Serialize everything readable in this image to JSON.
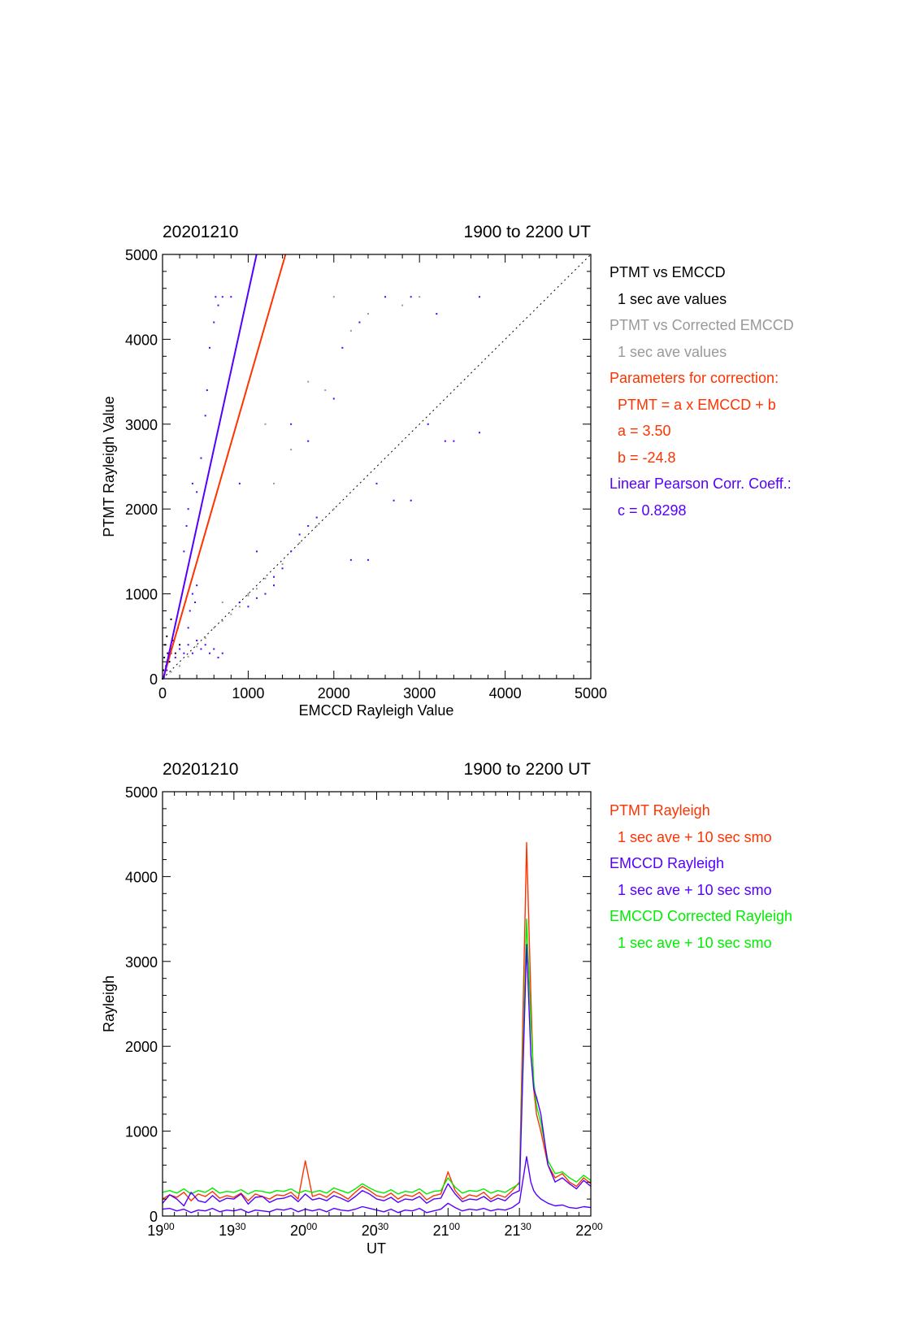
{
  "chart_data": [
    {
      "type": "scatter",
      "title_left": "20201210",
      "title_right": "1900 to 2200 UT",
      "xlabel": "EMCCD Rayleigh Value",
      "ylabel": "PTMT Rayleigh Value",
      "xlim": [
        0,
        5000
      ],
      "ylim": [
        0,
        5000
      ],
      "xticks": [
        "0",
        "1000",
        "2000",
        "3000",
        "4000",
        "5000"
      ],
      "yticks": [
        "0",
        "1000",
        "2000",
        "3000",
        "4000",
        "5000"
      ],
      "series": [
        {
          "color": "#5500ff",
          "points": [
            [
              50,
              100
            ],
            [
              80,
              200
            ],
            [
              100,
              300
            ],
            [
              150,
              250
            ],
            [
              200,
              350
            ],
            [
              250,
              300
            ],
            [
              300,
              400
            ],
            [
              350,
              300
            ],
            [
              400,
              450
            ],
            [
              450,
              350
            ],
            [
              500,
              400
            ],
            [
              550,
              300
            ],
            [
              600,
              350
            ],
            [
              650,
              250
            ],
            [
              700,
              300
            ],
            [
              300,
              600
            ],
            [
              320,
              800
            ],
            [
              350,
              1000
            ],
            [
              380,
              900
            ],
            [
              400,
              1100
            ],
            [
              250,
              1500
            ],
            [
              280,
              1800
            ],
            [
              300,
              2000
            ],
            [
              350,
              2300
            ],
            [
              400,
              2200
            ],
            [
              450,
              2600
            ],
            [
              500,
              3100
            ],
            [
              520,
              3400
            ],
            [
              550,
              3900
            ],
            [
              600,
              4200
            ],
            [
              620,
              4500
            ],
            [
              650,
              4400
            ],
            [
              700,
              4500
            ],
            [
              800,
              4500
            ],
            [
              900,
              900
            ],
            [
              1000,
              850
            ],
            [
              1100,
              950
            ],
            [
              1200,
              1000
            ],
            [
              1300,
              1100
            ],
            [
              1400,
              1300
            ],
            [
              1500,
              1500
            ],
            [
              1600,
              1700
            ],
            [
              1700,
              1800
            ],
            [
              1800,
              1900
            ],
            [
              1100,
              1500
            ],
            [
              1300,
              1200
            ],
            [
              1700,
              2800
            ],
            [
              2000,
              3300
            ],
            [
              2100,
              3900
            ],
            [
              2300,
              4200
            ],
            [
              2600,
              4500
            ],
            [
              2900,
              4500
            ],
            [
              3200,
              4300
            ],
            [
              2500,
              2300
            ],
            [
              2700,
              2100
            ],
            [
              2900,
              2100
            ],
            [
              3300,
              2800
            ],
            [
              3400,
              2800
            ],
            [
              2200,
              1400
            ],
            [
              2400,
              1400
            ],
            [
              3700,
              2900
            ],
            [
              3700,
              4500
            ],
            [
              3100,
              3000
            ],
            [
              900,
              2300
            ],
            [
              1500,
              3000
            ]
          ]
        },
        {
          "color": "#999999",
          "points": [
            [
              20,
              20
            ],
            [
              100,
              80
            ],
            [
              200,
              150
            ],
            [
              300,
              260
            ],
            [
              400,
              380
            ],
            [
              500,
              480
            ],
            [
              600,
              600
            ],
            [
              700,
              680
            ],
            [
              800,
              760
            ],
            [
              900,
              850
            ],
            [
              1000,
              980
            ],
            [
              1100,
              1060
            ],
            [
              1200,
              1180
            ],
            [
              1400,
              1350
            ],
            [
              1600,
              1600
            ],
            [
              1800,
              1800
            ],
            [
              2000,
              2000
            ],
            [
              1900,
              3400
            ],
            [
              2000,
              4500
            ],
            [
              2200,
              4100
            ],
            [
              2400,
              4300
            ],
            [
              2800,
              4400
            ],
            [
              3000,
              4500
            ],
            [
              1500,
              2700
            ],
            [
              1700,
              3500
            ],
            [
              1300,
              2300
            ],
            [
              1000,
              1000
            ],
            [
              700,
              900
            ],
            [
              1200,
              3000
            ]
          ]
        },
        {
          "color": "#000000",
          "points": [
            [
              0,
              0
            ],
            [
              10,
              100
            ],
            [
              20,
              250
            ],
            [
              30,
              400
            ],
            [
              40,
              150
            ],
            [
              50,
              500
            ],
            [
              60,
              300
            ],
            [
              80,
              200
            ],
            [
              100,
              350
            ],
            [
              120,
              450
            ],
            [
              150,
              300
            ],
            [
              200,
              400
            ],
            [
              180,
              600
            ],
            [
              100,
              700
            ]
          ]
        }
      ],
      "fit_lines": [
        {
          "color": "#ff3300",
          "a": 3.5,
          "b": -24.8
        },
        {
          "color": "#5500ff",
          "a": 4.6,
          "b": -50
        }
      ],
      "reference_line": {
        "color": "#000000",
        "style": "dotted",
        "from": [
          0,
          0
        ],
        "to": [
          5000,
          5000
        ]
      }
    },
    {
      "type": "line",
      "title_left": "20201210",
      "title_right": "1900 to 2200 UT",
      "xlabel": "UT",
      "ylabel": "Rayleigh",
      "xlim_hours": [
        19.0,
        22.0
      ],
      "ylim": [
        0,
        5000
      ],
      "xticks": [
        {
          "hour": "19",
          "min": "00"
        },
        {
          "hour": "19",
          "min": "30"
        },
        {
          "hour": "20",
          "min": "00"
        },
        {
          "hour": "20",
          "min": "30"
        },
        {
          "hour": "21",
          "min": "00"
        },
        {
          "hour": "21",
          "min": "30"
        },
        {
          "hour": "22",
          "min": "00"
        }
      ],
      "yticks": [
        "0",
        "1000",
        "2000",
        "3000",
        "4000",
        "5000"
      ],
      "x_hours": [
        19.0,
        19.05,
        19.1,
        19.15,
        19.2,
        19.25,
        19.3,
        19.35,
        19.4,
        19.45,
        19.5,
        19.55,
        19.6,
        19.65,
        19.7,
        19.75,
        19.8,
        19.85,
        19.9,
        19.95,
        20.0,
        20.05,
        20.1,
        20.15,
        20.2,
        20.25,
        20.3,
        20.35,
        20.4,
        20.45,
        20.5,
        20.55,
        20.6,
        20.65,
        20.7,
        20.75,
        20.8,
        20.85,
        20.9,
        20.95,
        21.0,
        21.05,
        21.1,
        21.15,
        21.2,
        21.25,
        21.3,
        21.35,
        21.4,
        21.45,
        21.5,
        21.55,
        21.58,
        21.6,
        21.62,
        21.65,
        21.7,
        21.75,
        21.8,
        21.85,
        21.9,
        21.95,
        22.0
      ],
      "series": [
        {
          "color": "#ff3300",
          "values": [
            200,
            250,
            220,
            280,
            180,
            260,
            230,
            290,
            210,
            240,
            220,
            270,
            180,
            260,
            230,
            200,
            250,
            240,
            280,
            200,
            650,
            230,
            260,
            220,
            290,
            250,
            200,
            280,
            350,
            300,
            240,
            220,
            270,
            200,
            250,
            230,
            280,
            190,
            240,
            260,
            520,
            300,
            200,
            250,
            230,
            280,
            200,
            250,
            220,
            300,
            400,
            4400,
            2600,
            1500,
            1200,
            1000,
            600,
            450,
            500,
            400,
            350,
            450,
            380
          ]
        },
        {
          "color": "#00ee00",
          "values": [
            280,
            300,
            270,
            320,
            260,
            300,
            280,
            330,
            270,
            290,
            280,
            310,
            260,
            300,
            290,
            270,
            300,
            290,
            320,
            270,
            300,
            280,
            300,
            270,
            330,
            300,
            270,
            320,
            380,
            330,
            290,
            270,
            310,
            260,
            290,
            280,
            320,
            260,
            290,
            300,
            450,
            340,
            270,
            300,
            290,
            320,
            270,
            300,
            280,
            330,
            380,
            3500,
            2300,
            1600,
            1300,
            1100,
            650,
            500,
            520,
            450,
            400,
            480,
            420
          ]
        },
        {
          "color": "#5500ff",
          "values": [
            150,
            250,
            200,
            120,
            280,
            180,
            160,
            240,
            170,
            210,
            200,
            260,
            140,
            220,
            230,
            160,
            200,
            210,
            240,
            170,
            260,
            190,
            210,
            180,
            240,
            210,
            170,
            230,
            300,
            260,
            200,
            180,
            220,
            160,
            200,
            190,
            230,
            150,
            200,
            210,
            380,
            260,
            170,
            200,
            190,
            230,
            170,
            210,
            180,
            260,
            300,
            3200,
            1900,
            1500,
            1400,
            1200,
            600,
            400,
            450,
            380,
            320,
            420,
            350
          ]
        },
        {
          "color": "#5500ff",
          "values": [
            80,
            90,
            60,
            80,
            40,
            70,
            60,
            90,
            50,
            70,
            60,
            80,
            40,
            70,
            60,
            50,
            80,
            70,
            90,
            50,
            80,
            60,
            80,
            50,
            90,
            70,
            60,
            80,
            110,
            90,
            70,
            50,
            80,
            40,
            70,
            60,
            90,
            40,
            60,
            80,
            150,
            100,
            60,
            80,
            70,
            90,
            60,
            80,
            70,
            100,
            160,
            700,
            400,
            300,
            250,
            200,
            150,
            120,
            130,
            100,
            90,
            110,
            100
          ]
        }
      ]
    }
  ],
  "legends": {
    "scatter": [
      {
        "text": "PTMT vs EMCCD",
        "color": "#000000"
      },
      {
        "text": "1 sec ave values",
        "color": "#000000",
        "indent": true
      },
      {
        "text": "PTMT vs Corrected EMCCD",
        "color": "#999999"
      },
      {
        "text": "1 sec ave values",
        "color": "#999999",
        "indent": true
      },
      {
        "text": "Parameters for correction:",
        "color": "#ff3300"
      },
      {
        "text": "PTMT = a x EMCCD + b",
        "color": "#ff3300",
        "indent": true
      },
      {
        "text": "a = 3.50",
        "color": "#ff3300",
        "indent": true
      },
      {
        "text": "b =  -24.8",
        "color": "#ff3300",
        "indent": true
      },
      {
        "text": "Linear Pearson Corr. Coeff.:",
        "color": "#5500ff"
      },
      {
        "text": "c = 0.8298",
        "color": "#5500ff",
        "indent": true
      }
    ],
    "timeseries": [
      {
        "text": "PTMT Rayleigh",
        "color": "#ff3300"
      },
      {
        "text": "1 sec ave + 10 sec smo",
        "color": "#ff3300",
        "indent": true
      },
      {
        "text": "EMCCD Rayleigh",
        "color": "#5500ff"
      },
      {
        "text": "1 sec ave + 10 sec smo",
        "color": "#5500ff",
        "indent": true
      },
      {
        "text": "EMCCD Corrected Rayleigh",
        "color": "#00ee00"
      },
      {
        "text": "1 sec ave + 10 sec smo",
        "color": "#00ee00",
        "indent": true
      }
    ]
  }
}
